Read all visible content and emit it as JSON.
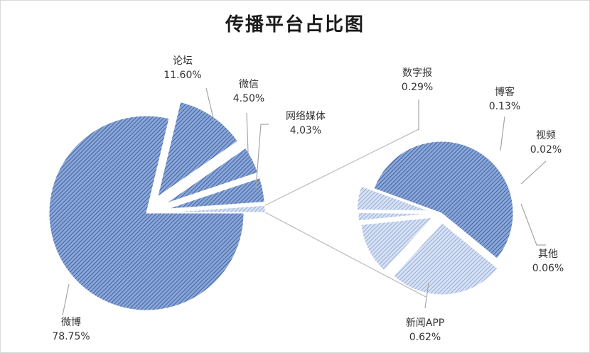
{
  "chart_data": {
    "type": "pie",
    "title": "传播平台占比图",
    "subtype": "bar-of-pie (exploded)",
    "main_pie": {
      "slices": [
        {
          "label": "微博",
          "value": 78.75,
          "value_label": "78.75%"
        },
        {
          "label": "论坛",
          "value": 11.6,
          "value_label": "11.60%"
        },
        {
          "label": "微信",
          "value": 4.5,
          "value_label": "4.50%"
        },
        {
          "label": "网络媒体",
          "value": 4.03,
          "value_label": "4.03%"
        }
      ],
      "other_slice_value": 1.12
    },
    "secondary_pie": {
      "slices": [
        {
          "label": "新闻APP",
          "value": 0.62,
          "value_label": "0.62%"
        },
        {
          "label": "数字报",
          "value": 0.29,
          "value_label": "0.29%"
        },
        {
          "label": "博客",
          "value": 0.13,
          "value_label": "0.13%"
        },
        {
          "label": "视频",
          "value": 0.02,
          "value_label": "0.02%"
        },
        {
          "label": "其他",
          "value": 0.06,
          "value_label": "0.06%"
        }
      ]
    },
    "colors": {
      "fill": "#7f9fd6",
      "fill_light": "#c4d3ef",
      "hatch": "#2f4f8f",
      "edge": "#ffffff",
      "leader": "#a6a6a6",
      "connector": "#bfbfbf"
    }
  }
}
